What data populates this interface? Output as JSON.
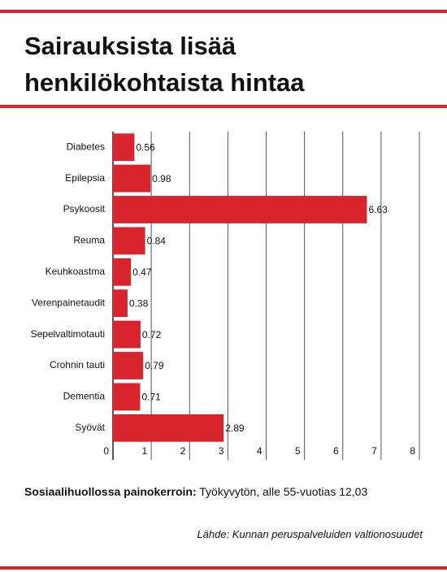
{
  "chart_data": {
    "type": "hbar",
    "title": "Sairauksista lisää henkilökohtaista hintaa",
    "categories": [
      "Diabetes",
      "Epilepsia",
      "Psykoosit",
      "Reuma",
      "Keuhkoastma",
      "Verenpainetaudit",
      "Sepelvaltimotauti",
      "Crohnin tauti",
      "Dementia",
      "Syövät"
    ],
    "values": [
      0.56,
      0.98,
      6.63,
      0.84,
      0.47,
      0.38,
      0.72,
      0.79,
      0.71,
      2.89
    ],
    "color": "#d9232d",
    "xlim": [
      0,
      8
    ],
    "xticks": [
      0,
      1,
      2,
      3,
      4,
      5,
      6,
      7,
      8
    ],
    "grid": true,
    "note_label": "Sosiaalihuollossa painokerroin:",
    "note": "Työkyvytön, alle 55-vuotias 12,03",
    "source": "Lähde: Kunnan peruspalveluiden valtionosuudet"
  }
}
